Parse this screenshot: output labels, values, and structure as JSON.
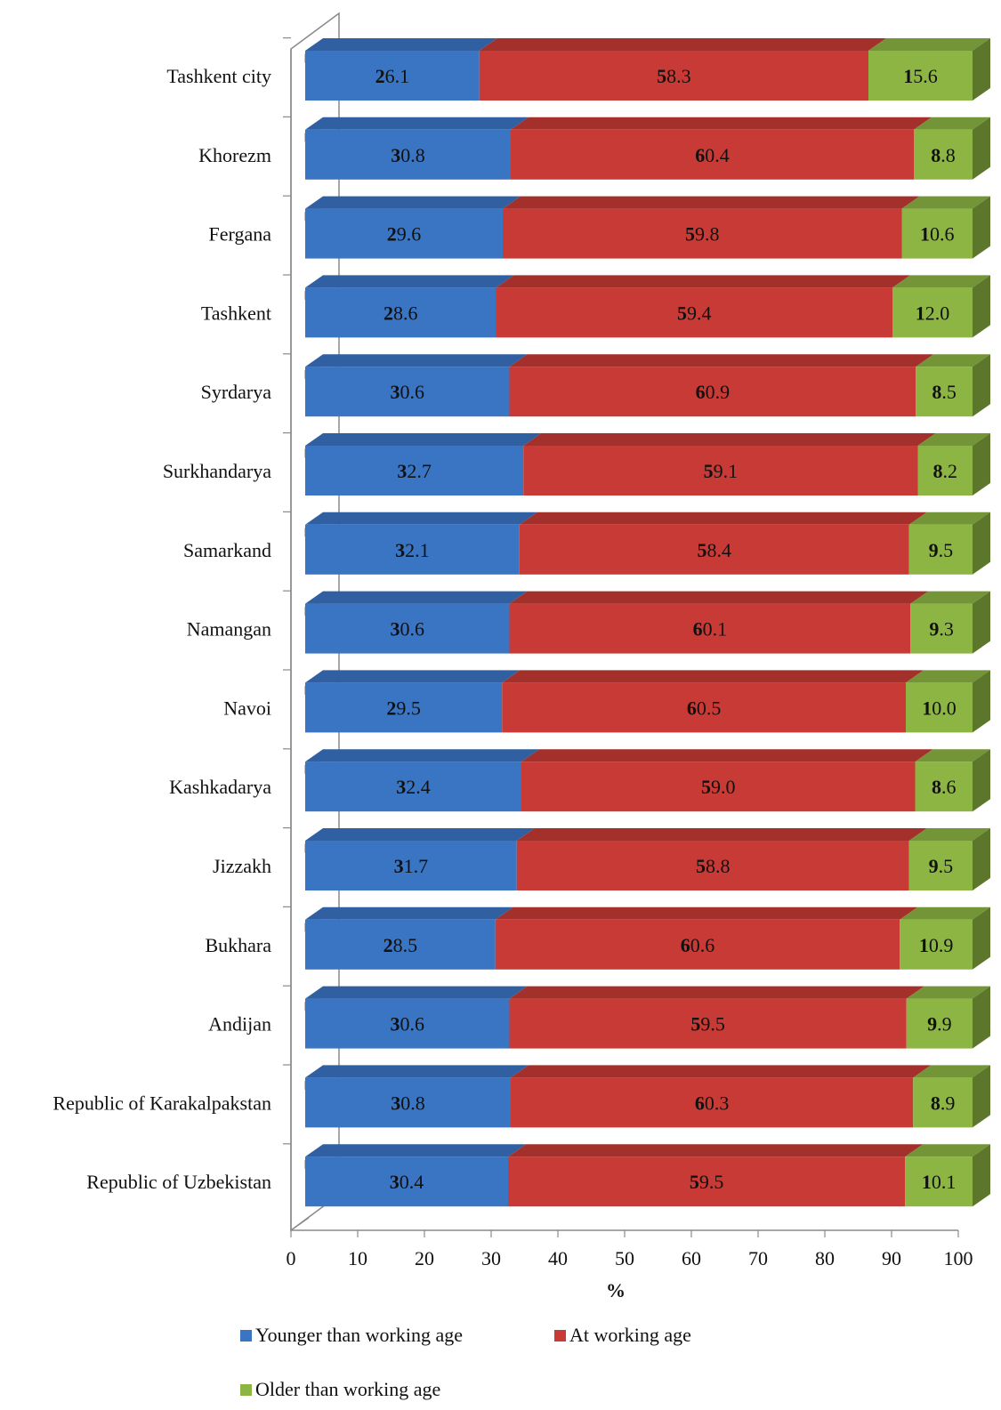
{
  "chart_data": {
    "type": "bar",
    "orientation": "horizontal",
    "stacked": true,
    "percent_stacked": true,
    "style": "3d",
    "categories": [
      "Tashkent city",
      "Khorezm",
      "Fergana",
      "Tashkent",
      "Syrdarya",
      "Surkhandarya",
      "Samarkand",
      "Namangan",
      "Navoi",
      "Kashkadarya",
      "Jizzakh",
      "Bukhara",
      "Andijan",
      "Republic of Karakalpakstan",
      "Republic of Uzbekistan"
    ],
    "series": [
      {
        "name": "Younger than working age",
        "color": "#3a75c4",
        "values": [
          26.1,
          30.8,
          29.6,
          28.6,
          30.6,
          32.7,
          32.1,
          30.6,
          29.5,
          32.4,
          31.7,
          28.5,
          30.6,
          30.8,
          30.4
        ],
        "labels": [
          "26.1",
          "30.8",
          "29.6",
          "28.6",
          "30.6",
          "32.7",
          "32.1",
          "30.6",
          "29.5",
          "32.4",
          "31.7",
          "28.5",
          "30.6",
          "30.8",
          "30.4"
        ]
      },
      {
        "name": "At working age",
        "color": "#c83a35",
        "values": [
          58.3,
          60.4,
          59.8,
          59.4,
          60.9,
          59.1,
          58.4,
          60.1,
          60.5,
          59.0,
          58.8,
          60.6,
          59.5,
          60.3,
          59.5
        ],
        "labels": [
          "58.3",
          "60.4",
          "59.8",
          "59.4",
          "60.9",
          "59.1",
          "58.4",
          "60.1",
          "60.5",
          "59.0",
          "58.8",
          "60.6",
          "59.5",
          "60.3",
          "59.5"
        ]
      },
      {
        "name": "Older than working age",
        "color": "#8db544",
        "values": [
          15.6,
          8.8,
          10.6,
          12.0,
          8.5,
          8.2,
          9.5,
          9.3,
          10.0,
          8.6,
          9.5,
          10.9,
          9.9,
          8.9,
          10.1
        ],
        "labels": [
          "15.6",
          "8.8",
          "10.6",
          "12.0",
          "8.5",
          "8.2",
          "9.5",
          "9.3",
          "10.0",
          "8.6",
          "9.5",
          "10.9",
          "9.9",
          "8.9",
          "10.1"
        ]
      }
    ],
    "x_ticks": [
      "0",
      "10",
      "20",
      "30",
      "40",
      "50",
      "60",
      "70",
      "80",
      "90",
      "100"
    ],
    "xlim": [
      0,
      100
    ],
    "xlabel": "%",
    "ylabel": "",
    "title": "",
    "grid": false,
    "legend_position": "bottom"
  }
}
